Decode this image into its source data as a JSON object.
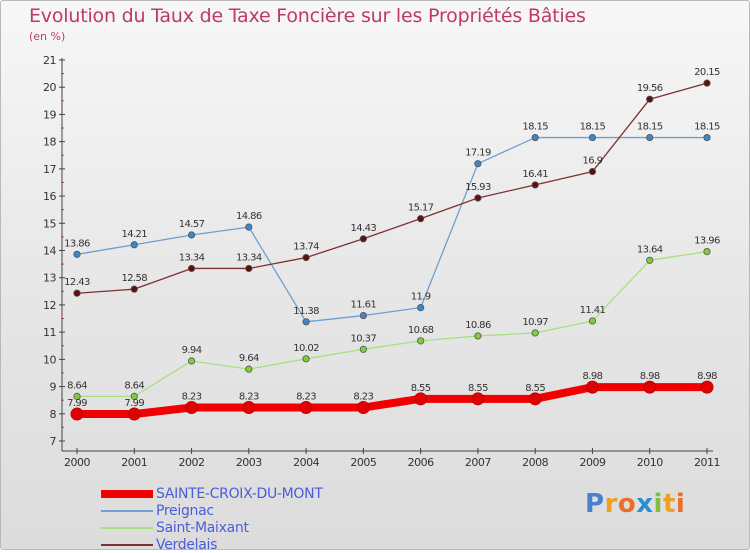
{
  "chart_data": {
    "type": "line",
    "title": "Evolution du Taux de Taxe Foncière sur les Propriétés Bâties",
    "subtitle": "(en %)",
    "x": [
      2000,
      2001,
      2002,
      2003,
      2004,
      2005,
      2006,
      2007,
      2008,
      2009,
      2010,
      2011
    ],
    "ylim": [
      7,
      21
    ],
    "yticks": [
      7,
      8,
      9,
      10,
      11,
      12,
      13,
      14,
      15,
      16,
      17,
      18,
      19,
      20,
      21
    ],
    "grid": false,
    "legend_position": "bottom-left",
    "series": [
      {
        "name": "Preignac",
        "color": "#6f9fce",
        "marker_color": "#3b86cc",
        "values": [
          13.86,
          14.21,
          14.57,
          14.86,
          11.38,
          11.61,
          11.9,
          17.19,
          18.15,
          18.15,
          18.15,
          18.15
        ],
        "labels": [
          "13.86",
          "14.21",
          "14.57",
          "14.86",
          "11.38",
          "11.61",
          "11.9",
          "17.19",
          "18.15",
          "18.15",
          "18.15",
          "18.15"
        ]
      },
      {
        "name": "Verdelais",
        "color": "#7a3232",
        "marker_color": "#5c1010",
        "values": [
          12.43,
          12.58,
          13.34,
          13.34,
          13.74,
          14.43,
          15.17,
          15.93,
          16.41,
          16.9,
          19.56,
          20.15
        ],
        "labels": [
          "12.43",
          "12.58",
          "13.34",
          "13.34",
          "13.74",
          "14.43",
          "15.17",
          "15.93",
          "16.41",
          "16.9",
          "19.56",
          "20.15"
        ]
      },
      {
        "name": "Saint-Maixant",
        "color": "#a8e07f",
        "marker_color": "#7fcc3a",
        "values": [
          8.64,
          8.64,
          9.94,
          9.64,
          10.02,
          10.37,
          10.68,
          10.86,
          10.97,
          11.41,
          13.64,
          13.96
        ],
        "labels": [
          "8.64",
          "8.64",
          "9.94",
          "9.64",
          "10.02",
          "10.37",
          "10.68",
          "10.86",
          "10.97",
          "11.41",
          "13.64",
          "13.96"
        ]
      },
      {
        "name": "SAINTE-CROIX-DU-MONT",
        "color": "#f00000",
        "marker_color": "#e00000",
        "values": [
          7.99,
          7.99,
          8.23,
          8.23,
          8.23,
          8.23,
          8.55,
          8.55,
          8.55,
          8.98,
          8.98,
          8.98
        ],
        "labels": [
          "7.99",
          "7.99",
          "8.23",
          "8.23",
          "8.23",
          "8.23",
          "8.55",
          "8.55",
          "8.55",
          "8.98",
          "8.98",
          "8.98"
        ]
      }
    ],
    "legend_order": [
      "SAINTE-CROIX-DU-MONT",
      "Preignac",
      "Saint-Maixant",
      "Verdelais"
    ]
  },
  "logo": {
    "letters": [
      "P",
      "r",
      "o",
      "x",
      "i",
      "t",
      "i"
    ],
    "colors": [
      "#4d7fd0",
      "#f0a020",
      "#e8702a",
      "#2a8fd0",
      "#7cc040",
      "#f0a020",
      "#e8702a"
    ]
  }
}
